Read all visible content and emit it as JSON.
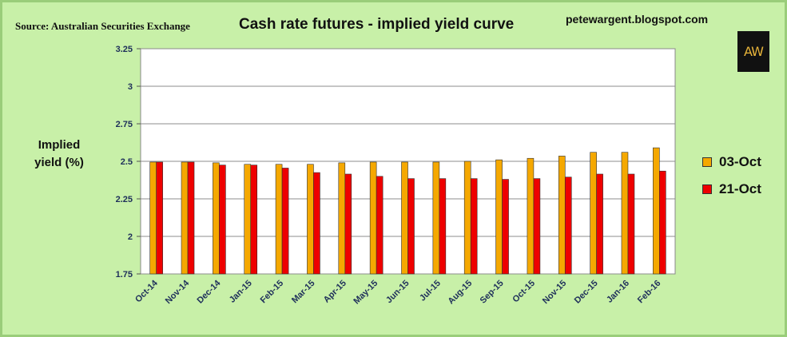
{
  "header": {
    "source": "Source: Australian Securities Exchange",
    "title": "Cash rate futures - implied yield curve",
    "site": "petewargent.blogspot.com",
    "logo_text": "AW"
  },
  "colors": {
    "background": "#c8f0a8",
    "plot_background": "#ffffff",
    "series_1": "#f5a800",
    "series_2": "#ee0000"
  },
  "chart_data": {
    "type": "bar",
    "title": "Cash rate futures - implied yield curve",
    "ylabel": "Implied yield (%)",
    "xlabel": "",
    "ylim": [
      1.75,
      3.25
    ],
    "yticks": [
      "3.25",
      "3",
      "2.75",
      "2.5",
      "2.25",
      "2",
      "1.75"
    ],
    "grid": true,
    "legend": "right",
    "categories": [
      "Oct-14",
      "Nov-14",
      "Dec-14",
      "Jan-15",
      "Feb-15",
      "Mar-15",
      "Apr-15",
      "May-15",
      "Jun-15",
      "Jul-15",
      "Aug-15",
      "Sep-15",
      "Oct-15",
      "Nov-15",
      "Dec-15",
      "Jan-16",
      "Feb-16"
    ],
    "series": [
      {
        "name": "03-Oct",
        "values": [
          2.495,
          2.495,
          2.49,
          2.48,
          2.48,
          2.48,
          2.49,
          2.495,
          2.495,
          2.495,
          2.5,
          2.51,
          2.52,
          2.535,
          2.56,
          2.56,
          2.59
        ]
      },
      {
        "name": "21-Oct",
        "values": [
          2.495,
          2.495,
          2.475,
          2.475,
          2.455,
          2.425,
          2.415,
          2.4,
          2.385,
          2.385,
          2.385,
          2.38,
          2.385,
          2.395,
          2.415,
          2.415,
          2.435
        ]
      }
    ]
  }
}
